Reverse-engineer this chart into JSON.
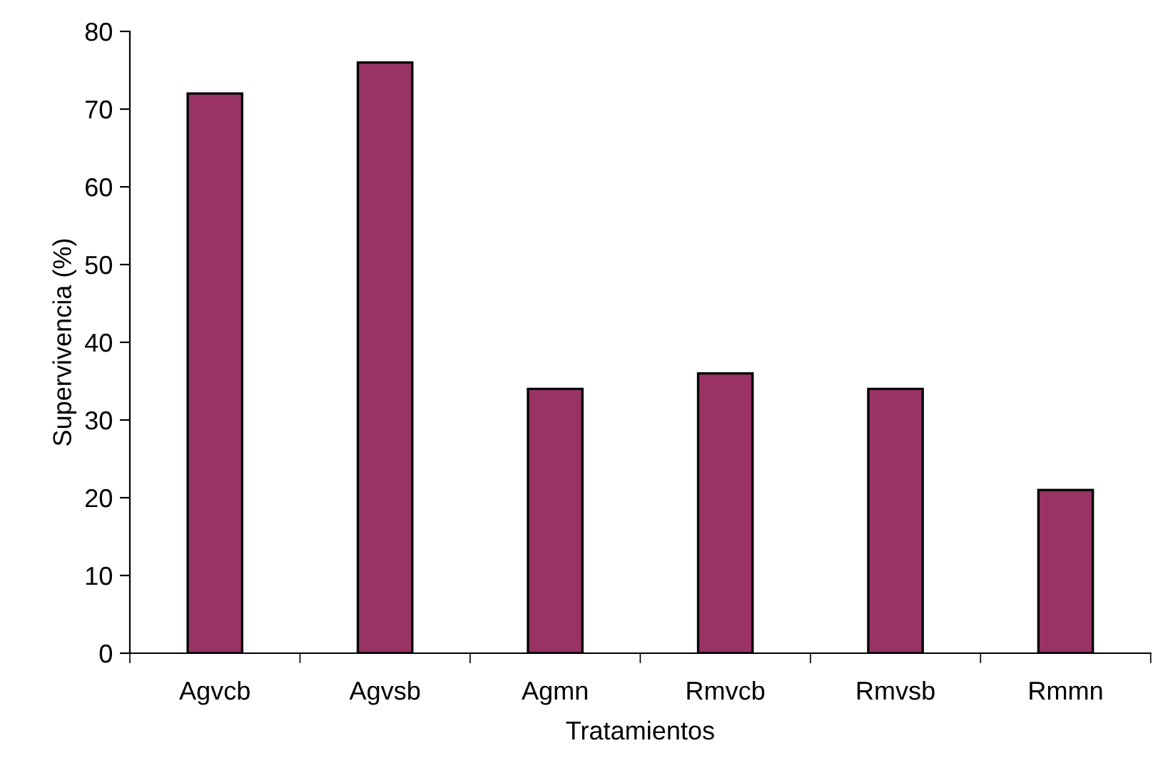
{
  "chart_data": {
    "type": "bar",
    "xlabel": "Tratamientos",
    "ylabel": "Supervivencia (%)",
    "categories": [
      "Agvcb",
      "Agvsb",
      "Agmn",
      "Rmvcb",
      "Rmvsb",
      "Rmmn"
    ],
    "values": [
      72,
      76,
      34,
      36,
      34,
      21
    ],
    "color": "#993366",
    "ylim": [
      0,
      80
    ],
    "yticks": [
      0,
      10,
      20,
      30,
      40,
      50,
      60,
      70,
      80
    ],
    "grid": false
  }
}
